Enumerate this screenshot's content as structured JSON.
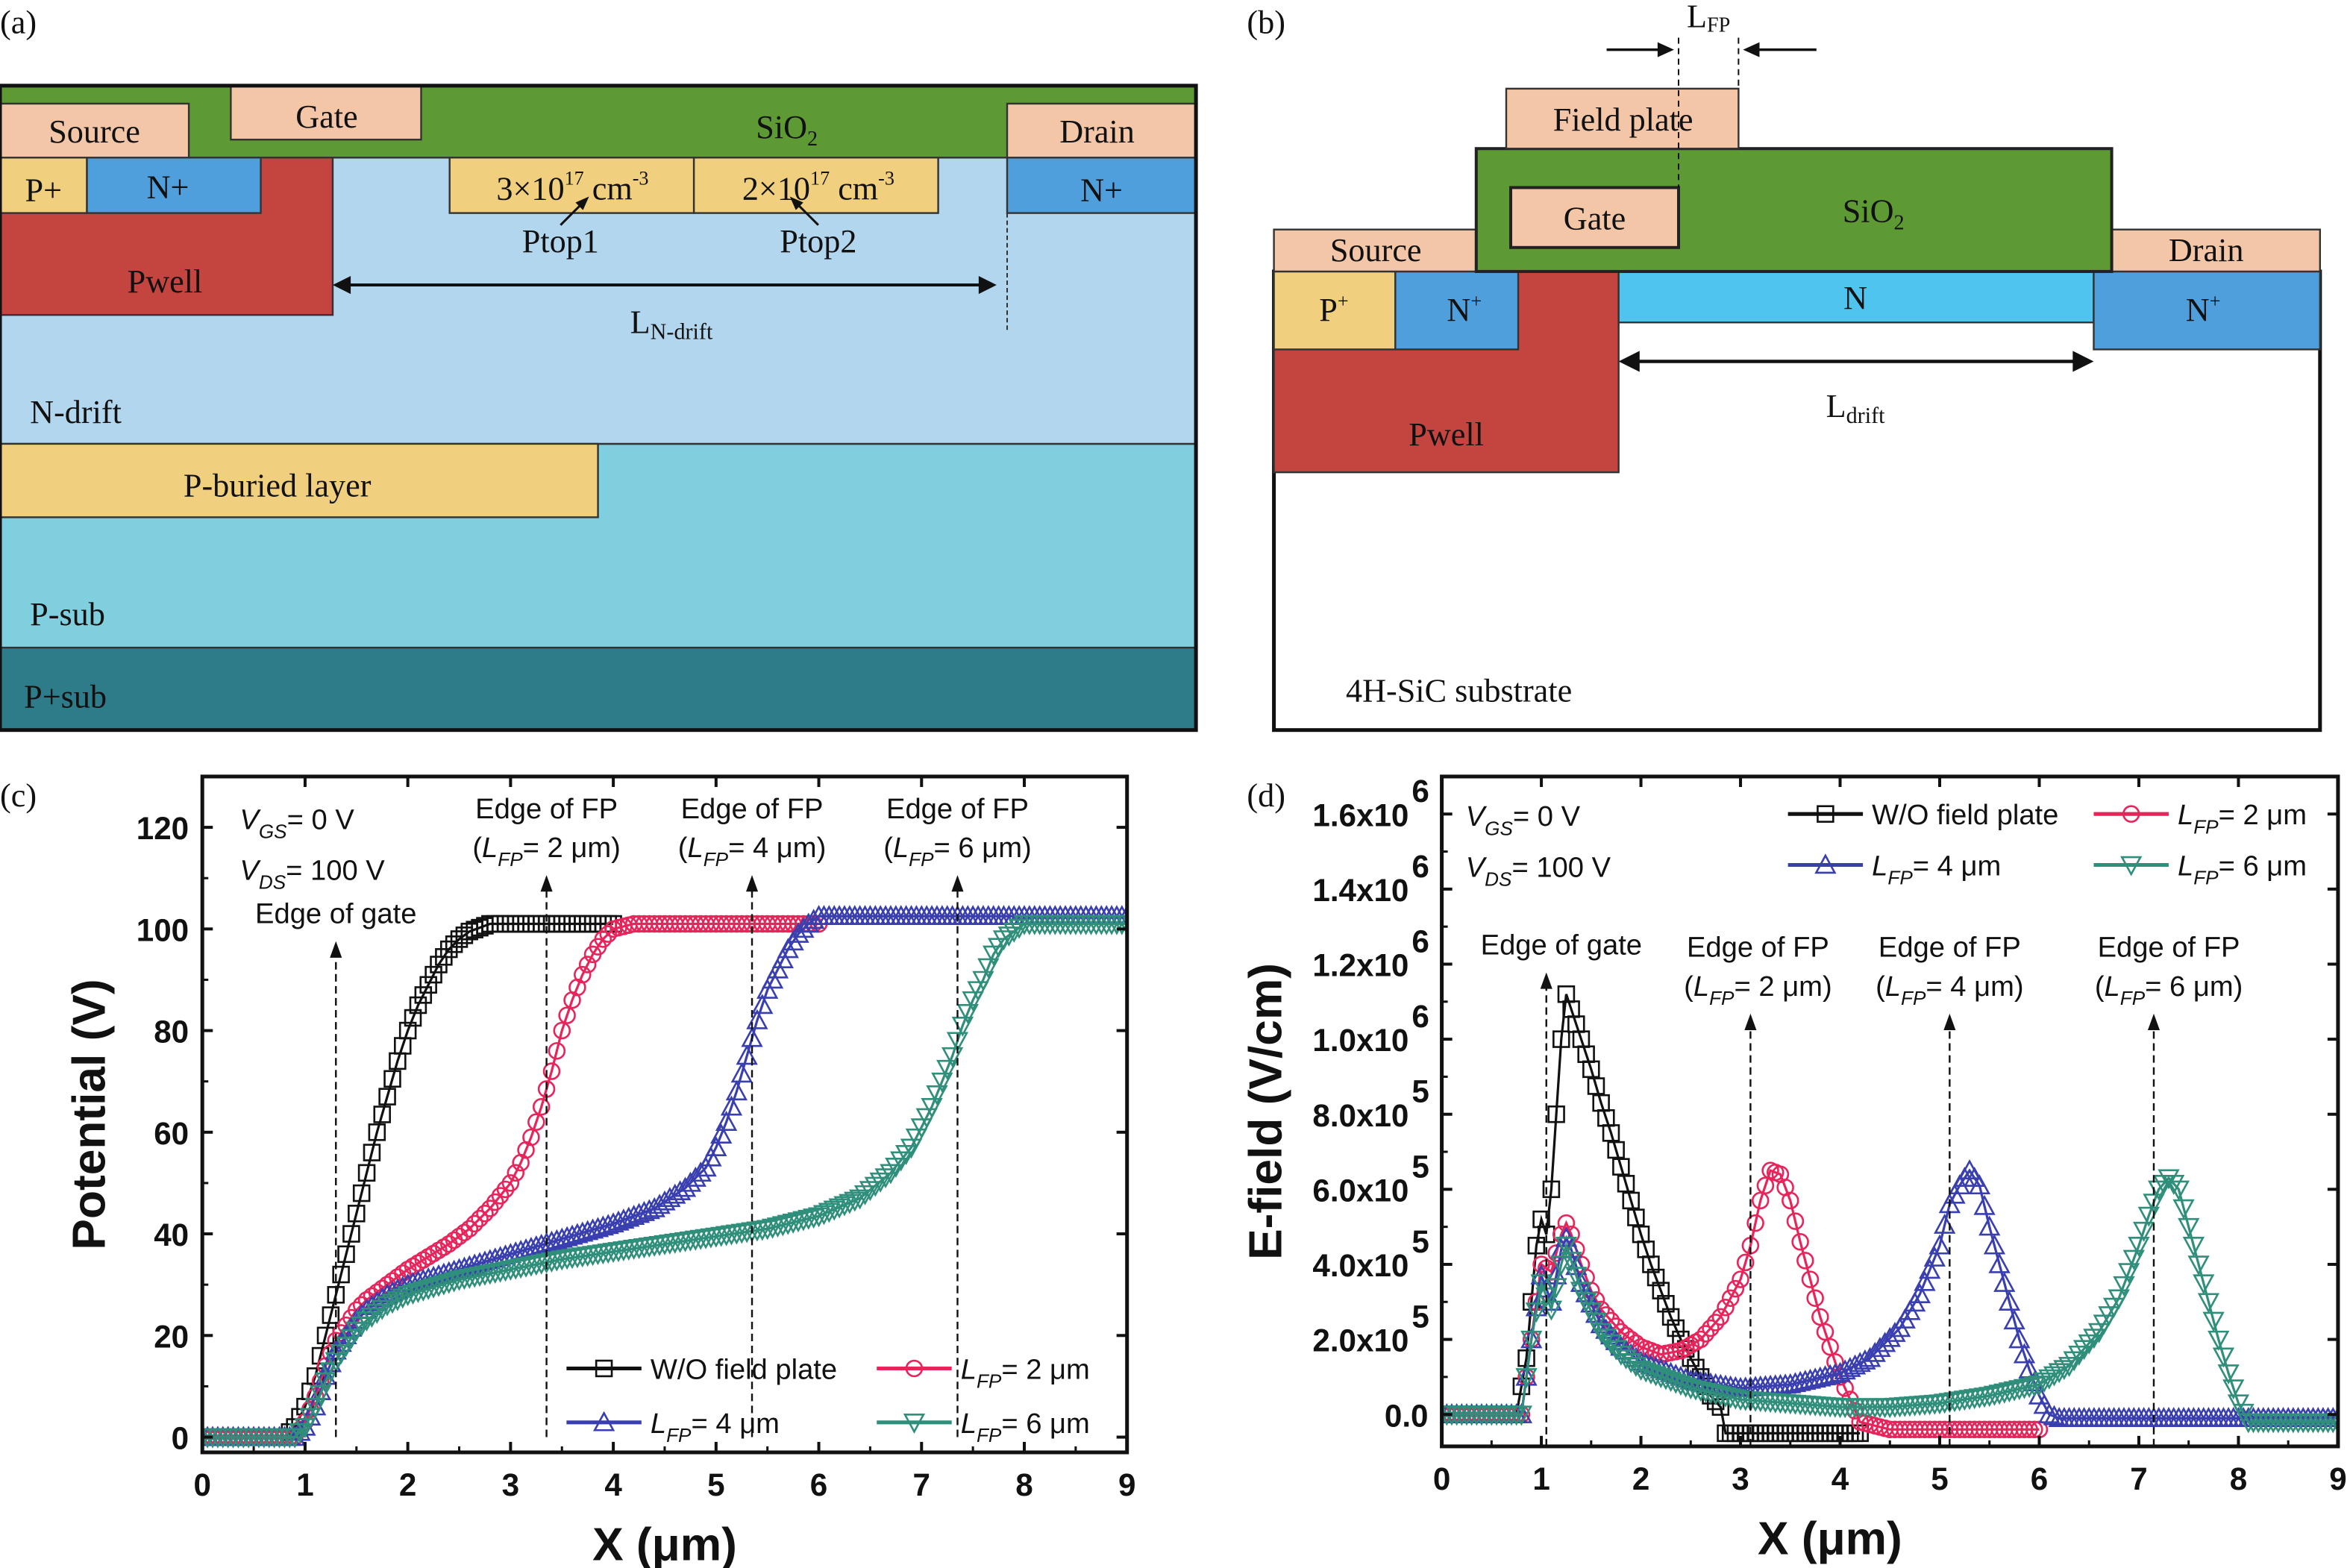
{
  "panel_a": {
    "label": "(a)",
    "source": "Source",
    "gate": "Gate",
    "sio2": {
      "main": "SiO",
      "sub": "2"
    },
    "drain": "Drain",
    "p_plus": "P+",
    "n_plus_source": "N+",
    "n_plus_drain": "N+",
    "pwell": "Pwell",
    "ptop1_doping": {
      "mant": "3×10",
      "exp": "17",
      "unit": " cm",
      "uexp": "-3"
    },
    "ptop2_doping": {
      "mant": "2×10",
      "exp": "17",
      "unit": " cm",
      "uexp": "-3"
    },
    "ptop1": "Ptop1",
    "ptop2": "Ptop2",
    "length": {
      "main": "L",
      "sub": "N-drift"
    },
    "n_drift": "N-drift",
    "p_buried": "P-buried layer",
    "p_sub": "P-sub",
    "p_plus_sub": "P+sub"
  },
  "panel_b": {
    "label": "(b)",
    "lfp": {
      "main": "L",
      "sub": "FP"
    },
    "field_plate": "Field plate",
    "gate": "Gate",
    "sio2": {
      "main": "SiO",
      "sub": "2"
    },
    "source": "Source",
    "drain": "Drain",
    "p_plus": {
      "main": "P",
      "sup": "+"
    },
    "n_plus_source": {
      "main": "N",
      "sup": "+"
    },
    "n_layer": "N",
    "n_plus_drain": {
      "main": "N",
      "sup": "+"
    },
    "pwell": "Pwell",
    "length": {
      "main": "L",
      "sub": "drift"
    },
    "substrate": "4H-SiC substrate"
  },
  "colors": {
    "sio2": "#5e9a34",
    "contact": "#f2c6a6",
    "p_plus": "#f0d07e",
    "n_plus": "#4f9fdc",
    "pwell": "#c4443f",
    "n_drift": "#b3d6ef",
    "p_sub": "#7fcfdf",
    "p_plus_sub": "#2e7c8a",
    "n_layer": "#4ec4ef"
  },
  "chart_data": [
    {
      "panel_label": "(c)",
      "type": "line",
      "xlabel": "X (μm)",
      "ylabel": "Potential (V)",
      "xlim": [
        0,
        9
      ],
      "ylim": [
        -3,
        130
      ],
      "xticks": [
        0,
        1,
        2,
        3,
        4,
        5,
        6,
        7,
        8,
        9
      ],
      "yticks": [
        {
          "v": 0,
          "t": "0"
        },
        {
          "v": 20,
          "t": "20"
        },
        {
          "v": 40,
          "t": "40"
        },
        {
          "v": 60,
          "t": "60"
        },
        {
          "v": 80,
          "t": "80"
        },
        {
          "v": 100,
          "t": "100"
        },
        {
          "v": 120,
          "t": "120"
        }
      ],
      "conditions": [
        {
          "main": "V",
          "sub": "GS",
          "rest": "= 0 V"
        },
        {
          "main": "V",
          "sub": "DS",
          "rest": "= 100 V"
        }
      ],
      "legend_placement": "bottom-right",
      "annotations": [
        {
          "x": 1.3,
          "y_from": 0,
          "y_to": 97,
          "lines": [
            {
              "text": "Edge of gate"
            }
          ]
        },
        {
          "x": 3.35,
          "y_from": 0,
          "y_to": 110,
          "lines": [
            {
              "text": "Edge of FP"
            },
            {
              "pre": "(",
              "main": "L",
              "sub": "FP",
              "rest": "= 2 μm)"
            }
          ]
        },
        {
          "x": 5.35,
          "y_from": 0,
          "y_to": 110,
          "lines": [
            {
              "text": "Edge of FP"
            },
            {
              "pre": "(",
              "main": "L",
              "sub": "FP",
              "rest": "= 4 μm)"
            }
          ]
        },
        {
          "x": 7.35,
          "y_from": 0,
          "y_to": 110,
          "lines": [
            {
              "text": "Edge of FP"
            },
            {
              "pre": "(",
              "main": "L",
              "sub": "FP",
              "rest": "= 6 μm)"
            }
          ]
        }
      ],
      "series": [
        {
          "label": {
            "main": "W/O field plate"
          },
          "color": "#111111",
          "marker": "square",
          "x": [
            0,
            0.8,
            0.9,
            1.0,
            1.1,
            1.2,
            1.3,
            1.4,
            1.5,
            1.6,
            1.7,
            1.8,
            1.9,
            2.0,
            2.1,
            2.2,
            2.3,
            2.4,
            2.5,
            2.6,
            2.8,
            3.0,
            4.0
          ],
          "y": [
            0,
            0,
            2,
            6,
            12,
            20,
            28,
            36,
            44,
            52,
            60,
            67,
            74,
            80,
            85,
            89,
            93,
            96,
            98,
            99.5,
            101,
            101,
            101
          ]
        },
        {
          "label": {
            "main": "L",
            "sub": "FP",
            "rest": "= 2 μm"
          },
          "color": "#e8245a",
          "marker": "circle",
          "x": [
            0,
            0.9,
            1.0,
            1.1,
            1.2,
            1.3,
            1.4,
            1.5,
            1.6,
            1.8,
            2.0,
            2.2,
            2.4,
            2.6,
            2.8,
            3.0,
            3.1,
            3.2,
            3.3,
            3.4,
            3.5,
            3.6,
            3.7,
            3.8,
            3.9,
            4.0,
            4.2,
            6.0
          ],
          "y": [
            0,
            0,
            3,
            8,
            14,
            19,
            22,
            25,
            27,
            30,
            33,
            35.5,
            38,
            41,
            45,
            50,
            54,
            59,
            65,
            72,
            80,
            86,
            91,
            95,
            98,
            100,
            101,
            101
          ]
        },
        {
          "label": {
            "main": "L",
            "sub": "FP",
            "rest": "= 4 μm"
          },
          "color": "#3a3fb0",
          "marker": "triangle-up",
          "x": [
            0,
            0.9,
            1.0,
            1.1,
            1.2,
            1.3,
            1.4,
            1.5,
            1.6,
            1.8,
            2.0,
            2.5,
            3.0,
            3.5,
            4.0,
            4.4,
            4.7,
            4.9,
            5.0,
            5.1,
            5.2,
            5.3,
            5.4,
            5.5,
            5.6,
            5.7,
            5.8,
            5.9,
            6.0,
            9.0
          ],
          "y": [
            0,
            0,
            2,
            6,
            12,
            17,
            20,
            23,
            25,
            28,
            30,
            33,
            36,
            39,
            42,
            45,
            49,
            53,
            57,
            62,
            68,
            75,
            82,
            88,
            92,
            96,
            99,
            101,
            102.5,
            102.5
          ]
        },
        {
          "label": {
            "main": "L",
            "sub": "FP",
            "rest": "= 6 μm"
          },
          "color": "#2f8f7a",
          "marker": "triangle-down",
          "x": [
            0,
            0.9,
            1.0,
            1.1,
            1.2,
            1.3,
            1.4,
            1.5,
            1.6,
            1.8,
            2.0,
            2.5,
            3.0,
            3.5,
            4.0,
            4.5,
            5.0,
            5.5,
            6.0,
            6.4,
            6.7,
            6.9,
            7.0,
            7.1,
            7.2,
            7.3,
            7.4,
            7.5,
            7.6,
            7.7,
            7.8,
            8.0,
            9.0
          ],
          "y": [
            0,
            0,
            2,
            6,
            11,
            15,
            18,
            21,
            23,
            26,
            28,
            31,
            33,
            35,
            36.5,
            38,
            39.5,
            41,
            43.5,
            47,
            52,
            57,
            61,
            65,
            70,
            75,
            81,
            86,
            90,
            95,
            98,
            101,
            101
          ]
        }
      ]
    },
    {
      "panel_label": "(d)",
      "type": "line",
      "xlabel": "X (μm)",
      "ylabel": "E-field (V/cm)",
      "xlim": [
        0,
        9
      ],
      "ylim": [
        -85000,
        1700000
      ],
      "xticks": [
        0,
        1,
        2,
        3,
        4,
        5,
        6,
        7,
        8,
        9
      ],
      "yticks": [
        {
          "v": 0,
          "t": "0.0"
        },
        {
          "v": 200000,
          "t": "2.0x10",
          "e": "5"
        },
        {
          "v": 400000,
          "t": "4.0x10",
          "e": "5"
        },
        {
          "v": 600000,
          "t": "6.0x10",
          "e": "5"
        },
        {
          "v": 800000,
          "t": "8.0x10",
          "e": "5"
        },
        {
          "v": 1000000,
          "t": "1.0x10",
          "e": "6"
        },
        {
          "v": 1200000,
          "t": "1.2x10",
          "e": "6"
        },
        {
          "v": 1400000,
          "t": "1.4x10",
          "e": "6"
        },
        {
          "v": 1600000,
          "t": "1.6x10",
          "e": "6"
        }
      ],
      "conditions": [
        {
          "main": "V",
          "sub": "GS",
          "rest": "= 0 V"
        },
        {
          "main": "V",
          "sub": "DS",
          "rest": "= 100 V"
        }
      ],
      "legend_placement": "top-right",
      "annotations": [
        {
          "x": 1.05,
          "y_from": -85000,
          "y_to": 1170000,
          "lines": [
            {
              "text": "Edge of gate"
            }
          ]
        },
        {
          "x": 3.1,
          "y_from": -85000,
          "y_to": 1060000,
          "lines": [
            {
              "text": "Edge of FP"
            },
            {
              "pre": "(",
              "main": "L",
              "sub": "FP",
              "rest": "= 2 μm)"
            }
          ]
        },
        {
          "x": 5.1,
          "y_from": -85000,
          "y_to": 1060000,
          "lines": [
            {
              "text": "Edge of FP"
            },
            {
              "pre": "(",
              "main": "L",
              "sub": "FP",
              "rest": "= 4 μm)"
            }
          ]
        },
        {
          "x": 7.15,
          "y_from": -85000,
          "y_to": 1060000,
          "lines": [
            {
              "text": "Edge of FP"
            },
            {
              "pre": "(",
              "main": "L",
              "sub": "FP",
              "rest": "= 6 μm)"
            }
          ]
        }
      ],
      "series": [
        {
          "label": {
            "main": "W/O field plate"
          },
          "color": "#111111",
          "marker": "square",
          "x": [
            0,
            0.75,
            0.85,
            0.95,
            1.0,
            1.05,
            1.1,
            1.15,
            1.2,
            1.25,
            1.3,
            1.4,
            1.5,
            1.6,
            1.7,
            1.8,
            1.9,
            2.0,
            2.1,
            2.2,
            2.3,
            2.4,
            2.5,
            2.6,
            2.7,
            2.8,
            2.85,
            3.0,
            4.2
          ],
          "y": [
            0,
            0,
            150000,
            450000,
            520000,
            480000,
            600000,
            800000,
            1000000,
            1120000,
            1080000,
            1000000,
            920000,
            830000,
            750000,
            660000,
            570000,
            480000,
            400000,
            330000,
            260000,
            200000,
            150000,
            100000,
            50000,
            20000,
            -50000,
            -50000,
            -50000
          ]
        },
        {
          "label": {
            "main": "L",
            "sub": "FP",
            "rest": "= 2 μm"
          },
          "color": "#e8245a",
          "marker": "circle",
          "x": [
            0,
            0.8,
            0.9,
            1.0,
            1.1,
            1.2,
            1.25,
            1.3,
            1.4,
            1.5,
            1.6,
            1.8,
            2.0,
            2.2,
            2.4,
            2.6,
            2.8,
            3.0,
            3.1,
            3.2,
            3.3,
            3.4,
            3.5,
            3.6,
            3.7,
            3.8,
            3.9,
            4.0,
            4.1,
            4.2,
            4.5,
            6.0
          ],
          "y": [
            0,
            0,
            200000,
            400000,
            380000,
            480000,
            510000,
            480000,
            400000,
            330000,
            280000,
            220000,
            180000,
            160000,
            170000,
            200000,
            260000,
            360000,
            450000,
            570000,
            650000,
            640000,
            570000,
            460000,
            360000,
            260000,
            180000,
            100000,
            40000,
            -20000,
            -40000,
            -40000
          ]
        },
        {
          "label": {
            "main": "L",
            "sub": "FP",
            "rest": "= 4 μm"
          },
          "color": "#3a3fb0",
          "marker": "triangle-up",
          "x": [
            0,
            0.8,
            0.9,
            1.0,
            1.1,
            1.2,
            1.25,
            1.3,
            1.4,
            1.6,
            1.8,
            2.0,
            2.5,
            3.0,
            3.5,
            4.0,
            4.3,
            4.6,
            4.8,
            5.0,
            5.1,
            5.2,
            5.3,
            5.4,
            5.5,
            5.6,
            5.7,
            5.8,
            5.9,
            6.0,
            6.1,
            6.2,
            9.0
          ],
          "y": [
            0,
            0,
            200000,
            370000,
            300000,
            440000,
            470000,
            440000,
            350000,
            240000,
            180000,
            140000,
            90000,
            70000,
            80000,
            110000,
            150000,
            230000,
            320000,
            450000,
            560000,
            610000,
            650000,
            610000,
            500000,
            400000,
            300000,
            200000,
            120000,
            50000,
            0,
            -10000,
            -10000
          ]
        },
        {
          "label": {
            "main": "L",
            "sub": "FP",
            "rest": "= 6 μm"
          },
          "color": "#2f8f7a",
          "marker": "triangle-down",
          "x": [
            0,
            0.8,
            0.9,
            1.0,
            1.1,
            1.2,
            1.25,
            1.3,
            1.4,
            1.6,
            1.8,
            2.0,
            2.5,
            3.0,
            3.5,
            4.0,
            4.5,
            5.0,
            5.5,
            6.0,
            6.3,
            6.6,
            6.8,
            7.0,
            7.1,
            7.2,
            7.3,
            7.4,
            7.5,
            7.6,
            7.7,
            7.8,
            7.9,
            8.0,
            8.1,
            9.0
          ],
          "y": [
            0,
            0,
            200000,
            350000,
            280000,
            400000,
            450000,
            410000,
            330000,
            220000,
            160000,
            120000,
            70000,
            40000,
            30000,
            20000,
            20000,
            30000,
            50000,
            80000,
            130000,
            220000,
            310000,
            450000,
            530000,
            600000,
            630000,
            600000,
            500000,
            400000,
            300000,
            200000,
            110000,
            30000,
            -20000,
            -20000
          ]
        }
      ]
    }
  ]
}
